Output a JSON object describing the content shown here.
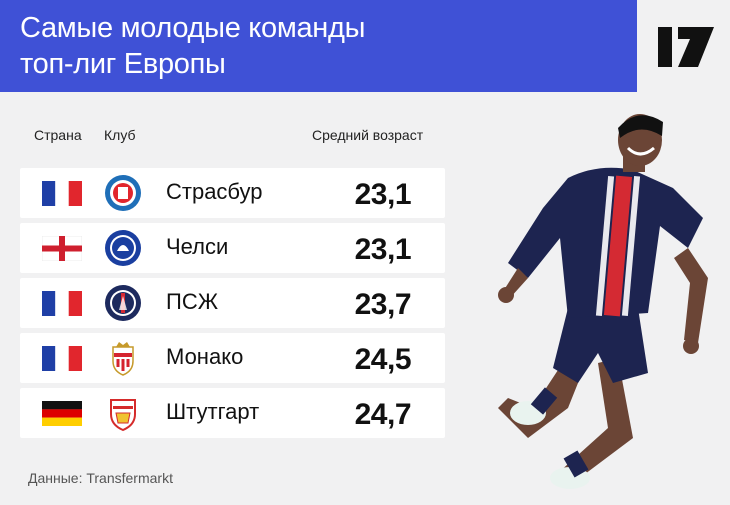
{
  "header": {
    "title_line1": "Самые молодые команды",
    "title_line2": "топ-лиг Европы",
    "bg_color": "#3f51d6"
  },
  "table": {
    "col_country": "Страна",
    "col_club": "Клуб",
    "col_age": "Средний возраст",
    "rows": [
      {
        "country": "france-flag",
        "crest": "strasbourg-crest",
        "club": "Страсбур",
        "age": "23,1"
      },
      {
        "country": "england-flag",
        "crest": "chelsea-crest",
        "club": "Челси",
        "age": "23,1"
      },
      {
        "country": "france-flag",
        "crest": "psg-crest",
        "club": "ПСЖ",
        "age": "23,7"
      },
      {
        "country": "france-flag",
        "crest": "monaco-crest",
        "club": "Монако",
        "age": "24,5"
      },
      {
        "country": "germany-flag",
        "crest": "stuttgart-crest",
        "club": "Штутгарт",
        "age": "24,7"
      }
    ]
  },
  "footer": {
    "source": "Данные: Transfermarkt"
  }
}
